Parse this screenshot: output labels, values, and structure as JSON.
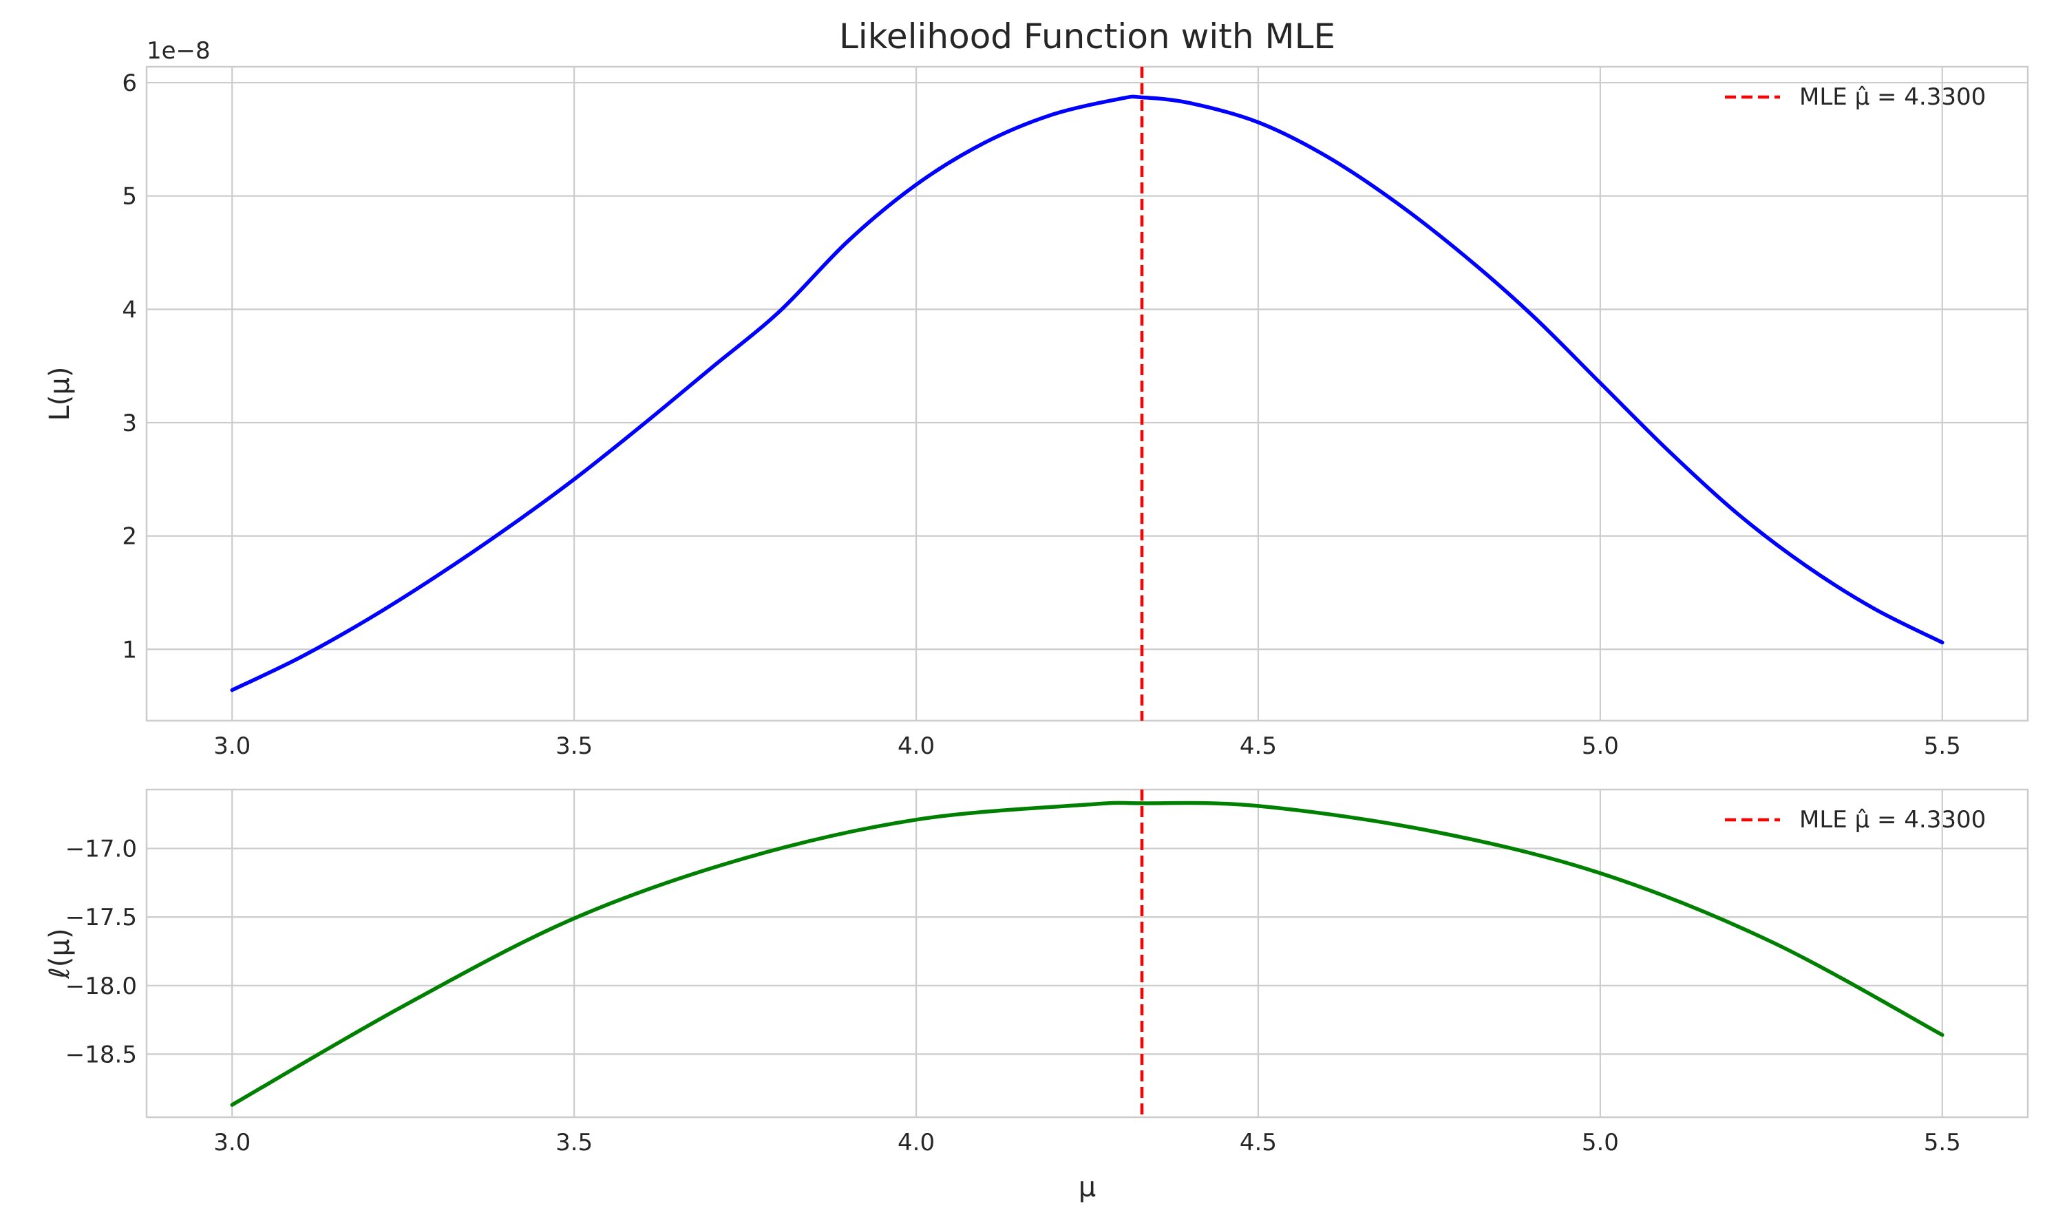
{
  "chart_data": [
    {
      "type": "line",
      "title": "Likelihood Function with MLE",
      "xlabel": "",
      "ylabel": "L(μ)",
      "xlim": [
        2.875,
        5.625
      ],
      "ylim": [
        3.7e-09,
        6.14e-08
      ],
      "y_offset_text": "1e−8",
      "y_scale": 1e-08,
      "x_ticks": [
        {
          "value": 3.0,
          "label": "3.0"
        },
        {
          "value": 3.5,
          "label": "3.5"
        },
        {
          "value": 4.0,
          "label": "4.0"
        },
        {
          "value": 4.5,
          "label": "4.5"
        },
        {
          "value": 5.0,
          "label": "5.0"
        },
        {
          "value": 5.5,
          "label": "5.5"
        }
      ],
      "y_ticks": [
        {
          "value": 1e-08,
          "label": "1"
        },
        {
          "value": 2e-08,
          "label": "2"
        },
        {
          "value": 3e-08,
          "label": "3"
        },
        {
          "value": 4e-08,
          "label": "4"
        },
        {
          "value": 5e-08,
          "label": "5"
        },
        {
          "value": 6e-08,
          "label": "6"
        }
      ],
      "grid": true,
      "legend_position": "upper-right",
      "series": [
        {
          "color": "#0000ff",
          "x": [
            3.0,
            3.1,
            3.2,
            3.3,
            3.4,
            3.5,
            3.6,
            3.7,
            3.8,
            3.9,
            4.0,
            4.1,
            4.2,
            4.3,
            4.33,
            4.4,
            4.5,
            4.6,
            4.7,
            4.8,
            4.9,
            5.0,
            5.1,
            5.2,
            5.3,
            5.4,
            5.5
          ],
          "y": [
            6.4e-09,
            9.3e-09,
            1.27e-08,
            1.65e-08,
            2.06e-08,
            2.5e-08,
            2.98e-08,
            3.48e-08,
            3.98e-08,
            4.6e-08,
            5.1e-08,
            5.47e-08,
            5.72e-08,
            5.86e-08,
            5.87e-08,
            5.82e-08,
            5.65e-08,
            5.35e-08,
            4.95e-08,
            4.48e-08,
            3.95e-08,
            3.35e-08,
            2.75e-08,
            2.2e-08,
            1.74e-08,
            1.36e-08,
            1.06e-08
          ]
        },
        {
          "name": "MLE μ̂ = 4.3300",
          "color": "#ff0000",
          "style": "dashed",
          "vline": 4.33
        }
      ]
    },
    {
      "type": "line",
      "title": "",
      "xlabel": "μ",
      "ylabel": "ℓ(μ)",
      "xlim": [
        2.875,
        5.625
      ],
      "ylim": [
        -18.96,
        -16.57
      ],
      "x_ticks": [
        {
          "value": 3.0,
          "label": "3.0"
        },
        {
          "value": 3.5,
          "label": "3.5"
        },
        {
          "value": 4.0,
          "label": "4.0"
        },
        {
          "value": 4.5,
          "label": "4.5"
        },
        {
          "value": 5.0,
          "label": "5.0"
        },
        {
          "value": 5.5,
          "label": "5.5"
        }
      ],
      "y_ticks": [
        {
          "value": -18.5,
          "label": "−18.5"
        },
        {
          "value": -18.0,
          "label": "−18.0"
        },
        {
          "value": -17.5,
          "label": "−17.5"
        },
        {
          "value": -17.0,
          "label": "−17.0"
        }
      ],
      "grid": true,
      "legend_position": "upper-right",
      "series": [
        {
          "color": "#008000",
          "x": [
            3.0,
            3.25,
            3.5,
            3.75,
            4.0,
            4.25,
            4.33,
            4.5,
            4.75,
            5.0,
            5.25,
            5.5
          ],
          "y": [
            -18.87,
            -18.15,
            -17.51,
            -17.07,
            -16.79,
            -16.68,
            -16.67,
            -16.69,
            -16.87,
            -17.18,
            -17.68,
            -18.36
          ]
        },
        {
          "name": "MLE μ̂ = 4.3300",
          "color": "#ff0000",
          "style": "dashed",
          "vline": 4.33
        }
      ]
    }
  ]
}
